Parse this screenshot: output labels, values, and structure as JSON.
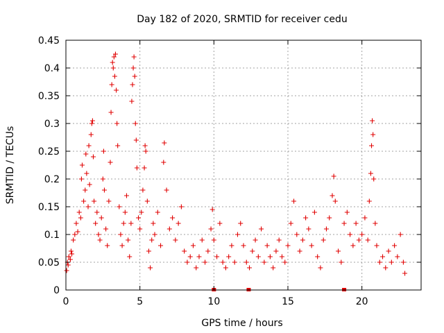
{
  "chart_data": {
    "type": "scatter",
    "title": "Day 182 of 2020, SRMTID for receiver cedu",
    "xlabel": "GPS time / hours",
    "ylabel": "SRMTID / TECUs",
    "xlim": [
      0,
      24
    ],
    "ylim": [
      0,
      0.45
    ],
    "x_ticks": [
      {
        "value": 0,
        "label": "0"
      },
      {
        "value": 5,
        "label": "5"
      },
      {
        "value": 10,
        "label": "10"
      },
      {
        "value": 15,
        "label": "15"
      },
      {
        "value": 20,
        "label": "20"
      }
    ],
    "y_ticks": [
      {
        "value": 0,
        "label": "0"
      },
      {
        "value": 0.05,
        "label": "0.05"
      },
      {
        "value": 0.1,
        "label": "0.1"
      },
      {
        "value": 0.15,
        "label": "0.15"
      },
      {
        "value": 0.2,
        "label": "0.2"
      },
      {
        "value": 0.25,
        "label": "0.25"
      },
      {
        "value": 0.3,
        "label": "0.3"
      },
      {
        "value": 0.35,
        "label": "0.35"
      },
      {
        "value": 0.4,
        "label": "0.4"
      },
      {
        "value": 0.45,
        "label": "0.45"
      }
    ],
    "grid": true,
    "marker": "plus",
    "series_color": "#e00000",
    "data_extent_hours": [
      0,
      23
    ],
    "series": [
      {
        "name": "SRMTID",
        "points": [
          [
            0.05,
            0.035
          ],
          [
            0.1,
            0.05
          ],
          [
            0.15,
            0.045
          ],
          [
            0.2,
            0.06
          ],
          [
            0.3,
            0.055
          ],
          [
            0.35,
            0.07
          ],
          [
            0.4,
            0.065
          ],
          [
            0.5,
            0.09
          ],
          [
            0.6,
            0.1
          ],
          [
            0.7,
            0.12
          ],
          [
            0.8,
            0.105
          ],
          [
            0.9,
            0.14
          ],
          [
            1.0,
            0.13
          ],
          [
            1.05,
            0.2
          ],
          [
            1.1,
            0.225
          ],
          [
            1.2,
            0.16
          ],
          [
            1.3,
            0.18
          ],
          [
            1.35,
            0.245
          ],
          [
            1.4,
            0.21
          ],
          [
            1.5,
            0.15
          ],
          [
            1.55,
            0.26
          ],
          [
            1.6,
            0.19
          ],
          [
            1.7,
            0.28
          ],
          [
            1.75,
            0.3
          ],
          [
            1.8,
            0.305
          ],
          [
            1.85,
            0.24
          ],
          [
            1.9,
            0.16
          ],
          [
            2.0,
            0.12
          ],
          [
            2.1,
            0.14
          ],
          [
            2.2,
            0.1
          ],
          [
            2.3,
            0.09
          ],
          [
            2.4,
            0.13
          ],
          [
            2.5,
            0.2
          ],
          [
            2.55,
            0.25
          ],
          [
            2.6,
            0.18
          ],
          [
            2.7,
            0.11
          ],
          [
            2.8,
            0.08
          ],
          [
            2.9,
            0.16
          ],
          [
            3.0,
            0.23
          ],
          [
            3.05,
            0.32
          ],
          [
            3.1,
            0.37
          ],
          [
            3.15,
            0.41
          ],
          [
            3.2,
            0.4
          ],
          [
            3.25,
            0.42
          ],
          [
            3.3,
            0.385
          ],
          [
            3.35,
            0.425
          ],
          [
            3.4,
            0.36
          ],
          [
            3.45,
            0.3
          ],
          [
            3.5,
            0.26
          ],
          [
            3.6,
            0.15
          ],
          [
            3.7,
            0.1
          ],
          [
            3.8,
            0.08
          ],
          [
            3.9,
            0.12
          ],
          [
            4.0,
            0.14
          ],
          [
            4.1,
            0.17
          ],
          [
            4.2,
            0.09
          ],
          [
            4.3,
            0.06
          ],
          [
            4.4,
            0.12
          ],
          [
            4.45,
            0.34
          ],
          [
            4.5,
            0.37
          ],
          [
            4.55,
            0.4
          ],
          [
            4.6,
            0.42
          ],
          [
            4.65,
            0.385
          ],
          [
            4.7,
            0.3
          ],
          [
            4.75,
            0.27
          ],
          [
            4.8,
            0.22
          ],
          [
            4.9,
            0.13
          ],
          [
            5.0,
            0.11
          ],
          [
            5.1,
            0.14
          ],
          [
            5.2,
            0.18
          ],
          [
            5.3,
            0.22
          ],
          [
            5.35,
            0.26
          ],
          [
            5.4,
            0.25
          ],
          [
            5.5,
            0.16
          ],
          [
            5.6,
            0.07
          ],
          [
            5.7,
            0.04
          ],
          [
            5.8,
            0.09
          ],
          [
            5.9,
            0.12
          ],
          [
            6.0,
            0.1
          ],
          [
            6.2,
            0.14
          ],
          [
            6.4,
            0.08
          ],
          [
            6.6,
            0.23
          ],
          [
            6.65,
            0.265
          ],
          [
            6.8,
            0.18
          ],
          [
            7.0,
            0.11
          ],
          [
            7.2,
            0.13
          ],
          [
            7.4,
            0.09
          ],
          [
            7.6,
            0.12
          ],
          [
            7.8,
            0.15
          ],
          [
            8.0,
            0.07
          ],
          [
            8.2,
            0.05
          ],
          [
            8.4,
            0.06
          ],
          [
            8.6,
            0.08
          ],
          [
            8.8,
            0.04
          ],
          [
            9.0,
            0.06
          ],
          [
            9.2,
            0.09
          ],
          [
            9.4,
            0.05
          ],
          [
            9.6,
            0.07
          ],
          [
            9.8,
            0.11
          ],
          [
            9.9,
            0.145
          ],
          [
            10.0,
            0.09
          ],
          [
            10.2,
            0.06
          ],
          [
            10.4,
            0.12
          ],
          [
            10.6,
            0.05
          ],
          [
            10.8,
            0.04
          ],
          [
            11.0,
            0.06
          ],
          [
            11.2,
            0.08
          ],
          [
            11.4,
            0.05
          ],
          [
            11.6,
            0.1
          ],
          [
            11.8,
            0.12
          ],
          [
            12.0,
            0.08
          ],
          [
            12.2,
            0.05
          ],
          [
            12.4,
            0.04
          ],
          [
            12.6,
            0.07
          ],
          [
            12.8,
            0.09
          ],
          [
            13.0,
            0.06
          ],
          [
            13.2,
            0.11
          ],
          [
            13.4,
            0.05
          ],
          [
            13.6,
            0.08
          ],
          [
            13.8,
            0.06
          ],
          [
            14.0,
            0.04
          ],
          [
            14.2,
            0.07
          ],
          [
            14.4,
            0.09
          ],
          [
            14.6,
            0.06
          ],
          [
            14.8,
            0.05
          ],
          [
            15.0,
            0.08
          ],
          [
            15.2,
            0.12
          ],
          [
            15.4,
            0.16
          ],
          [
            15.6,
            0.1
          ],
          [
            15.8,
            0.07
          ],
          [
            16.0,
            0.09
          ],
          [
            16.2,
            0.13
          ],
          [
            16.4,
            0.11
          ],
          [
            16.6,
            0.08
          ],
          [
            16.8,
            0.14
          ],
          [
            17.0,
            0.06
          ],
          [
            17.2,
            0.04
          ],
          [
            17.4,
            0.09
          ],
          [
            17.6,
            0.11
          ],
          [
            17.8,
            0.13
          ],
          [
            18.0,
            0.17
          ],
          [
            18.1,
            0.205
          ],
          [
            18.2,
            0.16
          ],
          [
            18.4,
            0.07
          ],
          [
            18.6,
            0.05
          ],
          [
            18.8,
            0.12
          ],
          [
            19.0,
            0.14
          ],
          [
            19.2,
            0.1
          ],
          [
            19.4,
            0.08
          ],
          [
            19.6,
            0.12
          ],
          [
            19.8,
            0.09
          ],
          [
            20.0,
            0.1
          ],
          [
            20.2,
            0.13
          ],
          [
            20.4,
            0.09
          ],
          [
            20.5,
            0.16
          ],
          [
            20.6,
            0.21
          ],
          [
            20.65,
            0.26
          ],
          [
            20.7,
            0.305
          ],
          [
            20.75,
            0.28
          ],
          [
            20.8,
            0.2
          ],
          [
            20.9,
            0.12
          ],
          [
            21.0,
            0.08
          ],
          [
            21.2,
            0.05
          ],
          [
            21.4,
            0.06
          ],
          [
            21.6,
            0.04
          ],
          [
            21.8,
            0.07
          ],
          [
            22.0,
            0.05
          ],
          [
            22.2,
            0.08
          ],
          [
            22.4,
            0.06
          ],
          [
            22.6,
            0.1
          ],
          [
            22.8,
            0.05
          ],
          [
            22.9,
            0.03
          ]
        ]
      }
    ],
    "zero_markers_hours": [
      10.0,
      12.35,
      18.8
    ]
  }
}
